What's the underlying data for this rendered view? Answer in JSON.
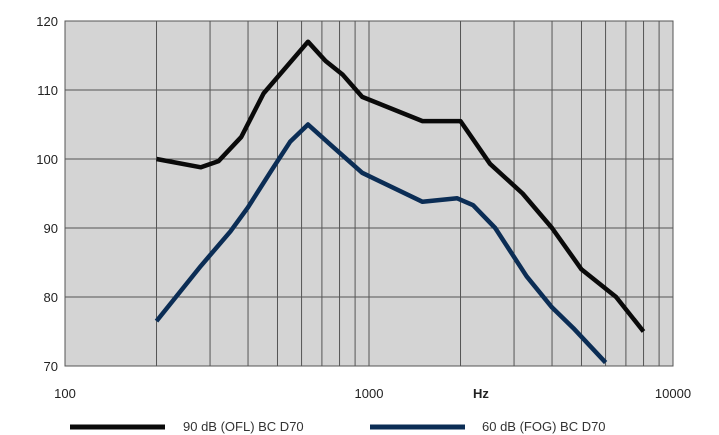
{
  "chart_data": {
    "type": "line",
    "title": "",
    "xlabel": "Hz",
    "ylabel": "",
    "x_scale": "log",
    "xlim": [
      100,
      10000
    ],
    "ylim": [
      70,
      120
    ],
    "grid": true,
    "legend_position": "bottom",
    "x_tick_labels": [
      "100",
      "1000",
      "10000"
    ],
    "y_tick_labels": [
      "70",
      "80",
      "90",
      "100",
      "110",
      "120"
    ],
    "series": [
      {
        "name": "90 dB (OFL) BC D70",
        "color": "#0a0a0a",
        "points": [
          [
            200,
            100
          ],
          [
            280,
            98.8
          ],
          [
            320,
            99.7
          ],
          [
            380,
            103.2
          ],
          [
            450,
            109.5
          ],
          [
            630,
            117
          ],
          [
            720,
            114.2
          ],
          [
            820,
            112.2
          ],
          [
            950,
            109
          ],
          [
            1500,
            105.5
          ],
          [
            2000,
            105.5
          ],
          [
            2500,
            99.3
          ],
          [
            3200,
            95
          ],
          [
            4000,
            90
          ],
          [
            5000,
            84
          ],
          [
            6500,
            80
          ],
          [
            8000,
            75
          ]
        ]
      },
      {
        "name": "60 dB (FOG) BC D70",
        "color": "#0b2d55",
        "points": [
          [
            200,
            76.5
          ],
          [
            280,
            84.5
          ],
          [
            350,
            89.5
          ],
          [
            400,
            93
          ],
          [
            480,
            98.5
          ],
          [
            550,
            102.5
          ],
          [
            630,
            105
          ],
          [
            750,
            102
          ],
          [
            950,
            98
          ],
          [
            1500,
            93.8
          ],
          [
            1950,
            94.3
          ],
          [
            2200,
            93.3
          ],
          [
            2600,
            90
          ],
          [
            3300,
            83
          ],
          [
            4000,
            78.5
          ],
          [
            4700,
            75.5
          ],
          [
            6000,
            70.5
          ]
        ]
      }
    ]
  }
}
